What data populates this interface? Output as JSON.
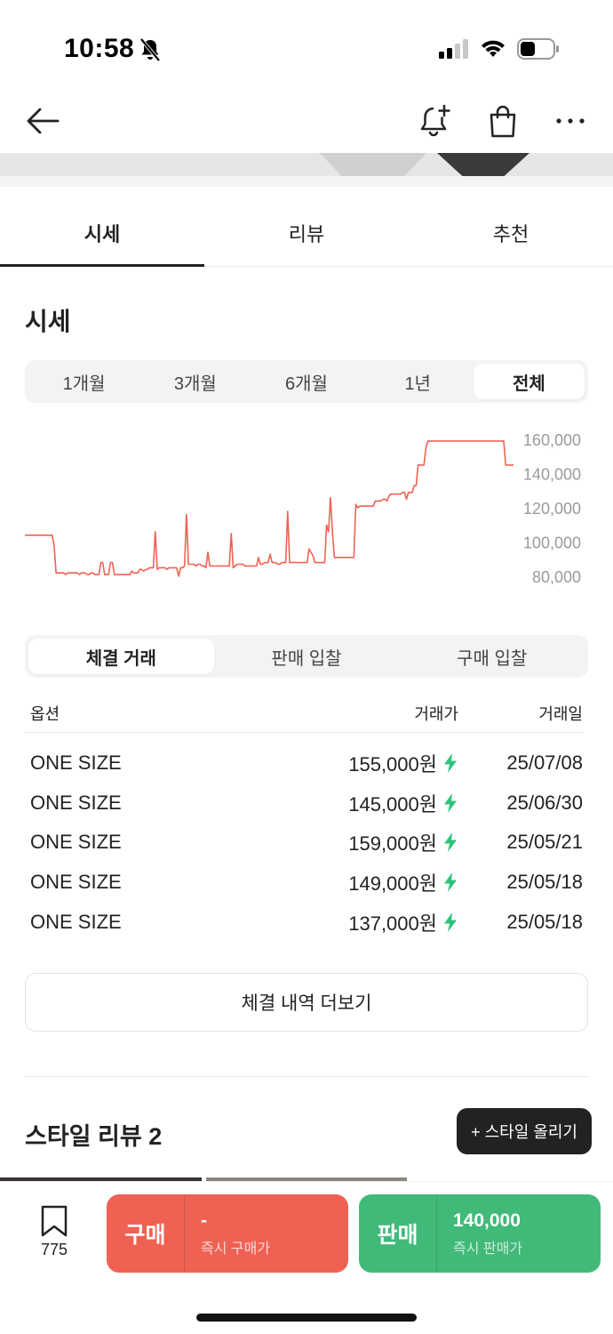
{
  "status": {
    "time": "10:58"
  },
  "tabs": [
    {
      "label": "시세"
    },
    {
      "label": "리뷰"
    },
    {
      "label": "추천"
    }
  ],
  "section_title": "시세",
  "periods": [
    {
      "label": "1개월"
    },
    {
      "label": "3개월"
    },
    {
      "label": "6개월"
    },
    {
      "label": "1년"
    },
    {
      "label": "전체"
    }
  ],
  "chart_data": {
    "type": "line",
    "title": "",
    "xlabel": "",
    "ylabel": "",
    "ylim": [
      80000,
      160000
    ],
    "y_ticks": [
      "160,000",
      "140,000",
      "120,000",
      "100,000",
      "80,000"
    ],
    "grid": false,
    "color": "#ef6253",
    "series": [
      {
        "values": [
          104000,
          104000,
          104000,
          104000,
          104000,
          104000,
          104000,
          104000,
          104000,
          104000,
          104000,
          104000,
          104000,
          104000,
          104000,
          98000,
          82000,
          82000,
          82000,
          82000,
          82000,
          81000,
          82000,
          82000,
          82000,
          82000,
          82000,
          82000,
          81000,
          82000,
          82000,
          82000,
          81000,
          81000,
          82000,
          82000,
          81000,
          81000,
          81000,
          88000,
          88000,
          81000,
          81000,
          81000,
          88000,
          88000,
          81000,
          81000,
          81000,
          81000,
          81000,
          81000,
          81000,
          81000,
          81000,
          83000,
          82000,
          82000,
          82000,
          84000,
          84000,
          83000,
          84000,
          84000,
          85000,
          85000,
          85000,
          106000,
          84000,
          85000,
          85000,
          85000,
          85000,
          84000,
          85000,
          85000,
          85000,
          85000,
          85000,
          80000,
          85000,
          85000,
          86000,
          116000,
          87000,
          87000,
          87000,
          87000,
          86000,
          87000,
          87000,
          86000,
          86000,
          85000,
          94000,
          86000,
          86000,
          86000,
          86000,
          86000,
          86000,
          86000,
          86000,
          86000,
          86000,
          86000,
          105000,
          85000,
          86000,
          87000,
          87000,
          87000,
          87000,
          86000,
          86000,
          86000,
          86000,
          86000,
          86000,
          86000,
          91000,
          87000,
          87000,
          88000,
          88000,
          88000,
          93000,
          88000,
          88000,
          88000,
          87000,
          87000,
          88000,
          88000,
          88000,
          118000,
          88000,
          88000,
          88000,
          88000,
          88000,
          88000,
          88000,
          88000,
          88000,
          88000,
          96000,
          94000,
          92000,
          88000,
          88000,
          88000,
          88000,
          88000,
          88000,
          110000,
          106000,
          126000,
          106000,
          91000,
          91000,
          91000,
          91000,
          91000,
          91000,
          91000,
          91000,
          91000,
          91000,
          91000,
          122000,
          120000,
          121000,
          121000,
          121000,
          121000,
          121000,
          121000,
          121000,
          121000,
          124000,
          124000,
          124000,
          124000,
          125000,
          125000,
          124000,
          127000,
          128000,
          128000,
          128000,
          128000,
          128000,
          128000,
          129000,
          129000,
          125000,
          129000,
          129000,
          129000,
          133000,
          133000,
          145000,
          145000,
          145000,
          145000,
          155000,
          159000,
          159000,
          159000,
          159000,
          159000,
          159000,
          159000,
          159000,
          159000,
          159000,
          159000,
          159000,
          159000,
          159000,
          159000,
          159000,
          159000,
          159000,
          159000,
          159000,
          159000,
          159000,
          159000,
          159000,
          159000,
          159000,
          159000,
          159000,
          159000,
          159000,
          159000,
          159000,
          159000,
          159000,
          159000,
          159000,
          159000,
          159000,
          159000,
          159000,
          145000,
          145000,
          145000,
          145000,
          145000
        ]
      }
    ]
  },
  "trade_tabs": [
    {
      "label": "체결 거래"
    },
    {
      "label": "판매 입찰"
    },
    {
      "label": "구매 입찰"
    }
  ],
  "table": {
    "headers": {
      "option": "옵션",
      "price": "거래가",
      "date": "거래일"
    },
    "rows": [
      {
        "option": "ONE SIZE",
        "price": "155,000원",
        "date": "25/07/08"
      },
      {
        "option": "ONE SIZE",
        "price": "145,000원",
        "date": "25/06/30"
      },
      {
        "option": "ONE SIZE",
        "price": "159,000원",
        "date": "25/05/21"
      },
      {
        "option": "ONE SIZE",
        "price": "149,000원",
        "date": "25/05/18"
      },
      {
        "option": "ONE SIZE",
        "price": "137,000원",
        "date": "25/05/18"
      }
    ]
  },
  "more_button": "체결 내역 더보기",
  "style_review": {
    "title": "스타일 리뷰 2",
    "upload_label": "+ 스타일 올리기"
  },
  "bottom": {
    "wish_count": "775",
    "buy": {
      "label": "구매",
      "price": "-",
      "sub": "즉시 구매가"
    },
    "sell": {
      "label": "판매",
      "price": "140,000",
      "sub": "즉시 판매가"
    }
  },
  "colors": {
    "buy": "#ef6253",
    "sell": "#41b979",
    "bolt": "#2ec27e"
  }
}
